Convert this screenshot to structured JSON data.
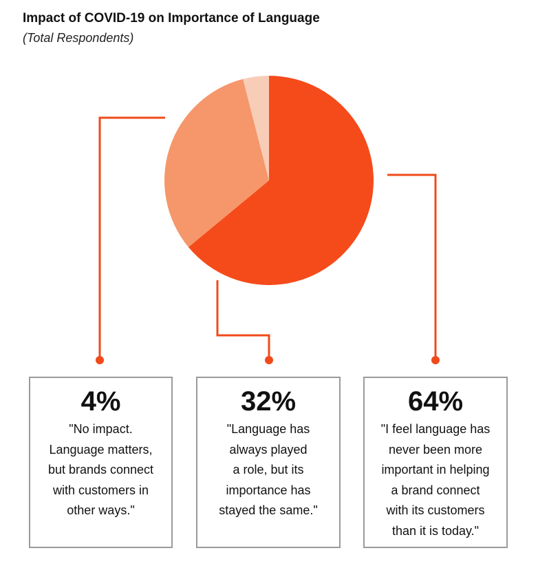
{
  "chart_data": {
    "type": "pie",
    "title": "Impact of COVID-19 on Importance of Language",
    "subtitle": "(Total Respondents)",
    "slices": [
      {
        "label": "64%",
        "value": 64,
        "color": "#f54b1a",
        "quote": "\"I feel language has\nnever been more\nimportant in helping\na brand connect\nwith its customers\nthan it is today.\""
      },
      {
        "label": "32%",
        "value": 32,
        "color": "#f5976b",
        "quote": "\"Language has\nalways played\na role, but its\nimportance has\nstayed the same.\""
      },
      {
        "label": "4%",
        "value": 4,
        "color": "#f8cdb8",
        "quote": "\"No impact.\nLanguage matters,\nbut brands connect\nwith customers in\nother ways.\""
      }
    ],
    "connector_color": "#f04a1a"
  }
}
